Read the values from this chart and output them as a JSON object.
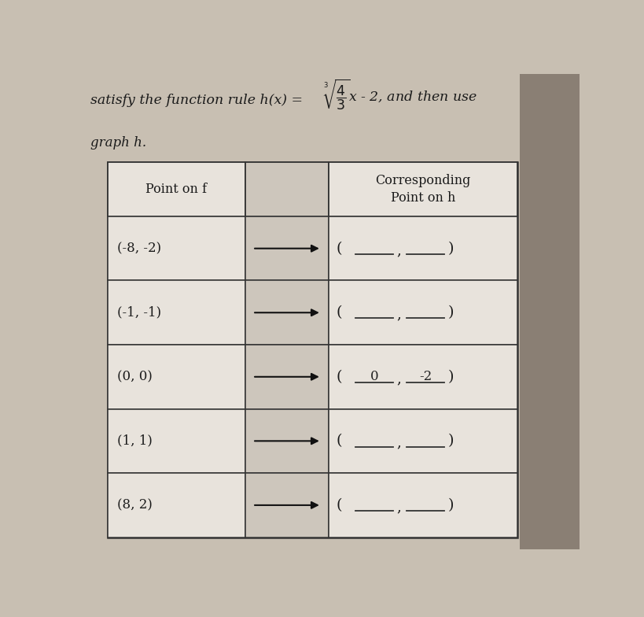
{
  "subtitle_text": "graph h.",
  "col1_header": "Point on f",
  "col2_header": "Corresponding\nPoint on h",
  "rows": [
    {
      "point_f": "(-8, -2)",
      "point_h_x": "",
      "point_h_y": ""
    },
    {
      "point_f": "(-1, -1)",
      "point_h_x": "",
      "point_h_y": ""
    },
    {
      "point_f": "(0, 0)",
      "point_h_x": "0",
      "point_h_y": "-2"
    },
    {
      "point_f": "(1, 1)",
      "point_h_x": "",
      "point_h_y": ""
    },
    {
      "point_f": "(8, 2)",
      "point_h_x": "",
      "point_h_y": ""
    }
  ],
  "bg_color": "#c8bfb2",
  "cell_bg": "#e8e3dc",
  "arrow_col_bg": "#cdc6bc",
  "border_color": "#333333",
  "text_color": "#1a1a1a",
  "arrow_color": "#111111",
  "answer_color": "#222222",
  "right_strip_color": "#8a7f74",
  "title_line": "satisfy the function rule h(x) =",
  "title_suffix": "x - 2, and then use"
}
